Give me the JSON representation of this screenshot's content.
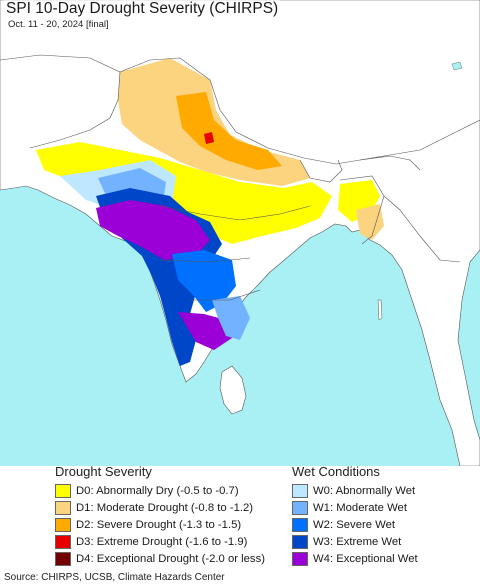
{
  "header": {
    "title": "SPI 10-Day Drought Severity (CHIRPS)",
    "subtitle": "Oct. 11 - 20, 2024 [final]"
  },
  "legend": {
    "drought_title": "Drought Severity",
    "wet_title": "Wet Conditions",
    "drought_items": [
      {
        "label": "D0: Abnormally Dry (-0.5 to -0.7)",
        "color": "#ffff00"
      },
      {
        "label": "D1: Moderate Drought (-0.8 to -1.2)",
        "color": "#fcd37f"
      },
      {
        "label": "D2: Severe Drought (-1.3 to -1.5)",
        "color": "#ffaa00"
      },
      {
        "label": "D3: Extreme Drought (-1.6 to -1.9)",
        "color": "#e60000"
      },
      {
        "label": "D4: Exceptional Drought (-2.0 or less)",
        "color": "#730000"
      }
    ],
    "wet_items": [
      {
        "label": "W0: Abnormally Wet",
        "color": "#bee8ff"
      },
      {
        "label": "W1: Moderate Wet",
        "color": "#73b2ff"
      },
      {
        "label": "W2: Severe Wet",
        "color": "#0070ff"
      },
      {
        "label": "W3: Extreme Wet",
        "color": "#0046c8"
      },
      {
        "label": "W4: Exceptional Wet",
        "color": "#9b00d6"
      }
    ]
  },
  "footer": {
    "source": "Source: CHIRPS, UCSB, Climate Hazards Center"
  },
  "map_colors": {
    "ocean": "#a8f0f4",
    "land": "#ffffff",
    "border": "#555555"
  }
}
